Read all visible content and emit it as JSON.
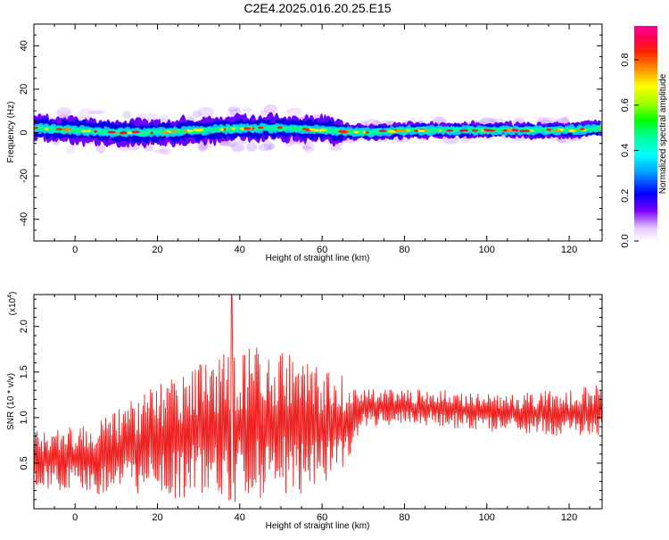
{
  "chart_data": [
    {
      "type": "heatmap",
      "title": "C2E4.2025.016.20.25.E15",
      "xlabel": "Height of straight line (km)",
      "ylabel": "Frequency (Hz)",
      "xlim": [
        -10,
        128
      ],
      "ylim": [
        -50,
        50
      ],
      "xticks": [
        0,
        20,
        40,
        60,
        80,
        100,
        120
      ],
      "yticks": [
        -40,
        -20,
        0,
        20,
        40
      ],
      "ridge": {
        "x": [
          -8,
          0,
          10,
          20,
          30,
          40,
          50,
          60,
          70,
          80,
          90,
          100,
          110,
          120,
          128
        ],
        "frequency": [
          2,
          1,
          0,
          0,
          1,
          2,
          2,
          1,
          0,
          1,
          1,
          1,
          1,
          1,
          2
        ]
      },
      "colorbar": {
        "label": "Normalized spectral amplitude",
        "ticks": [
          "0.0",
          "0.2",
          "0.4",
          "0.6",
          "0.8"
        ],
        "range": [
          0,
          0.95
        ]
      },
      "grid": false
    },
    {
      "type": "line",
      "xlabel": "Height of straight line (km)",
      "ylabel": "SNR (10 * v/v)",
      "multiplier": "(x10",
      "multiplier_exp": "4",
      "multiplier_close": ")",
      "xlim": [
        -10,
        128
      ],
      "ylim": [
        0,
        2.35
      ],
      "xticks": [
        0,
        20,
        40,
        60,
        80,
        100,
        120
      ],
      "yticks": [
        "0.5",
        "1.0",
        "1.5",
        "2.0"
      ],
      "color": "#ee2222",
      "envelope": {
        "x": [
          -10,
          0,
          10,
          20,
          30,
          38,
          45,
          50,
          55,
          60,
          65,
          70,
          80,
          90,
          100,
          110,
          120,
          128
        ],
        "mean": [
          0.55,
          0.55,
          0.6,
          0.75,
          0.85,
          0.9,
          0.95,
          0.95,
          0.9,
          0.9,
          0.95,
          1.1,
          1.12,
          1.1,
          1.05,
          1.05,
          1.05,
          1.05
        ],
        "amplitude": [
          0.3,
          0.35,
          0.45,
          0.6,
          0.7,
          0.8,
          0.8,
          0.75,
          0.7,
          0.6,
          0.5,
          0.2,
          0.18,
          0.2,
          0.2,
          0.22,
          0.25,
          0.3
        ]
      },
      "peak": {
        "x": 38,
        "y": 2.35
      },
      "grid": false
    }
  ]
}
